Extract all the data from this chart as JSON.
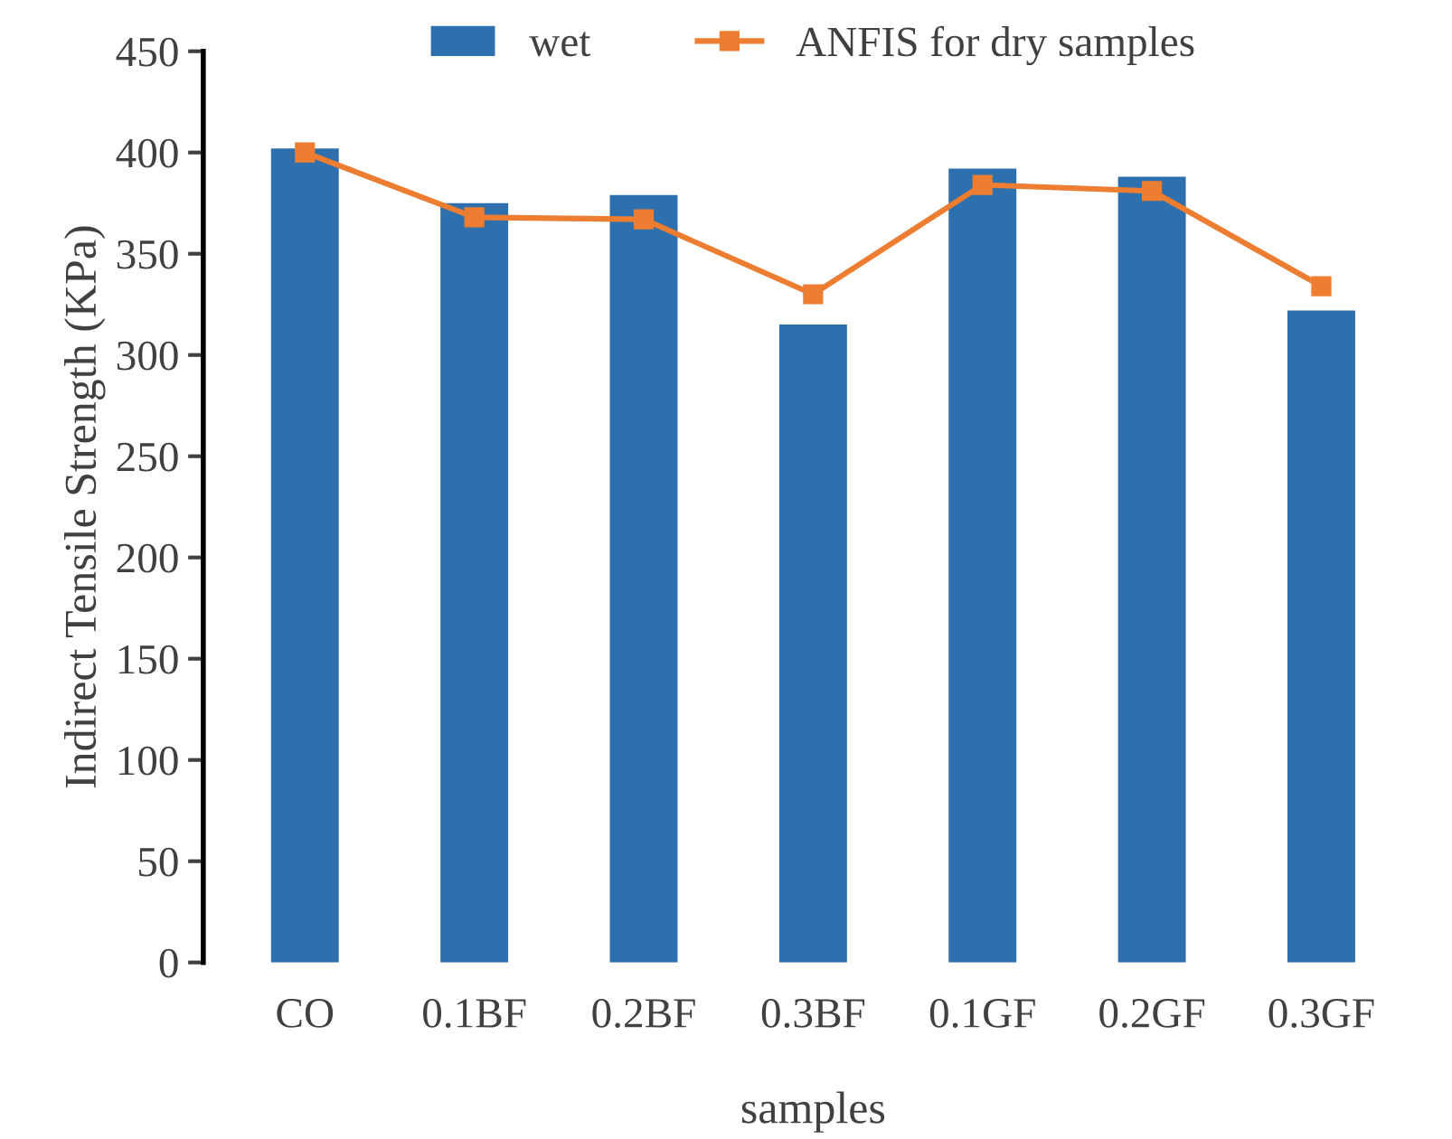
{
  "chart_data": {
    "type": "bar",
    "xlabel": "samples",
    "ylabel": "Indirect Tensile Strength (KPa)",
    "categories": [
      "CO",
      "0.1BF",
      "0.2BF",
      "0.3BF",
      "0.1GF",
      "0.2GF",
      "0.3GF"
    ],
    "series": [
      {
        "name": "wet",
        "color": "#2e6fad",
        "values": [
          402,
          375,
          379,
          315,
          392,
          388,
          322
        ]
      },
      {
        "name": "ANFIS for dry samples",
        "type": "line",
        "color": "#ed7d31",
        "marker": "square",
        "values": [
          400,
          368,
          367,
          330,
          384,
          381,
          334
        ]
      }
    ],
    "ylim": [
      0,
      450
    ],
    "yticks": [
      0,
      50,
      100,
      150,
      200,
      250,
      300,
      350,
      400,
      450
    ],
    "grid": false,
    "legend": "top"
  }
}
